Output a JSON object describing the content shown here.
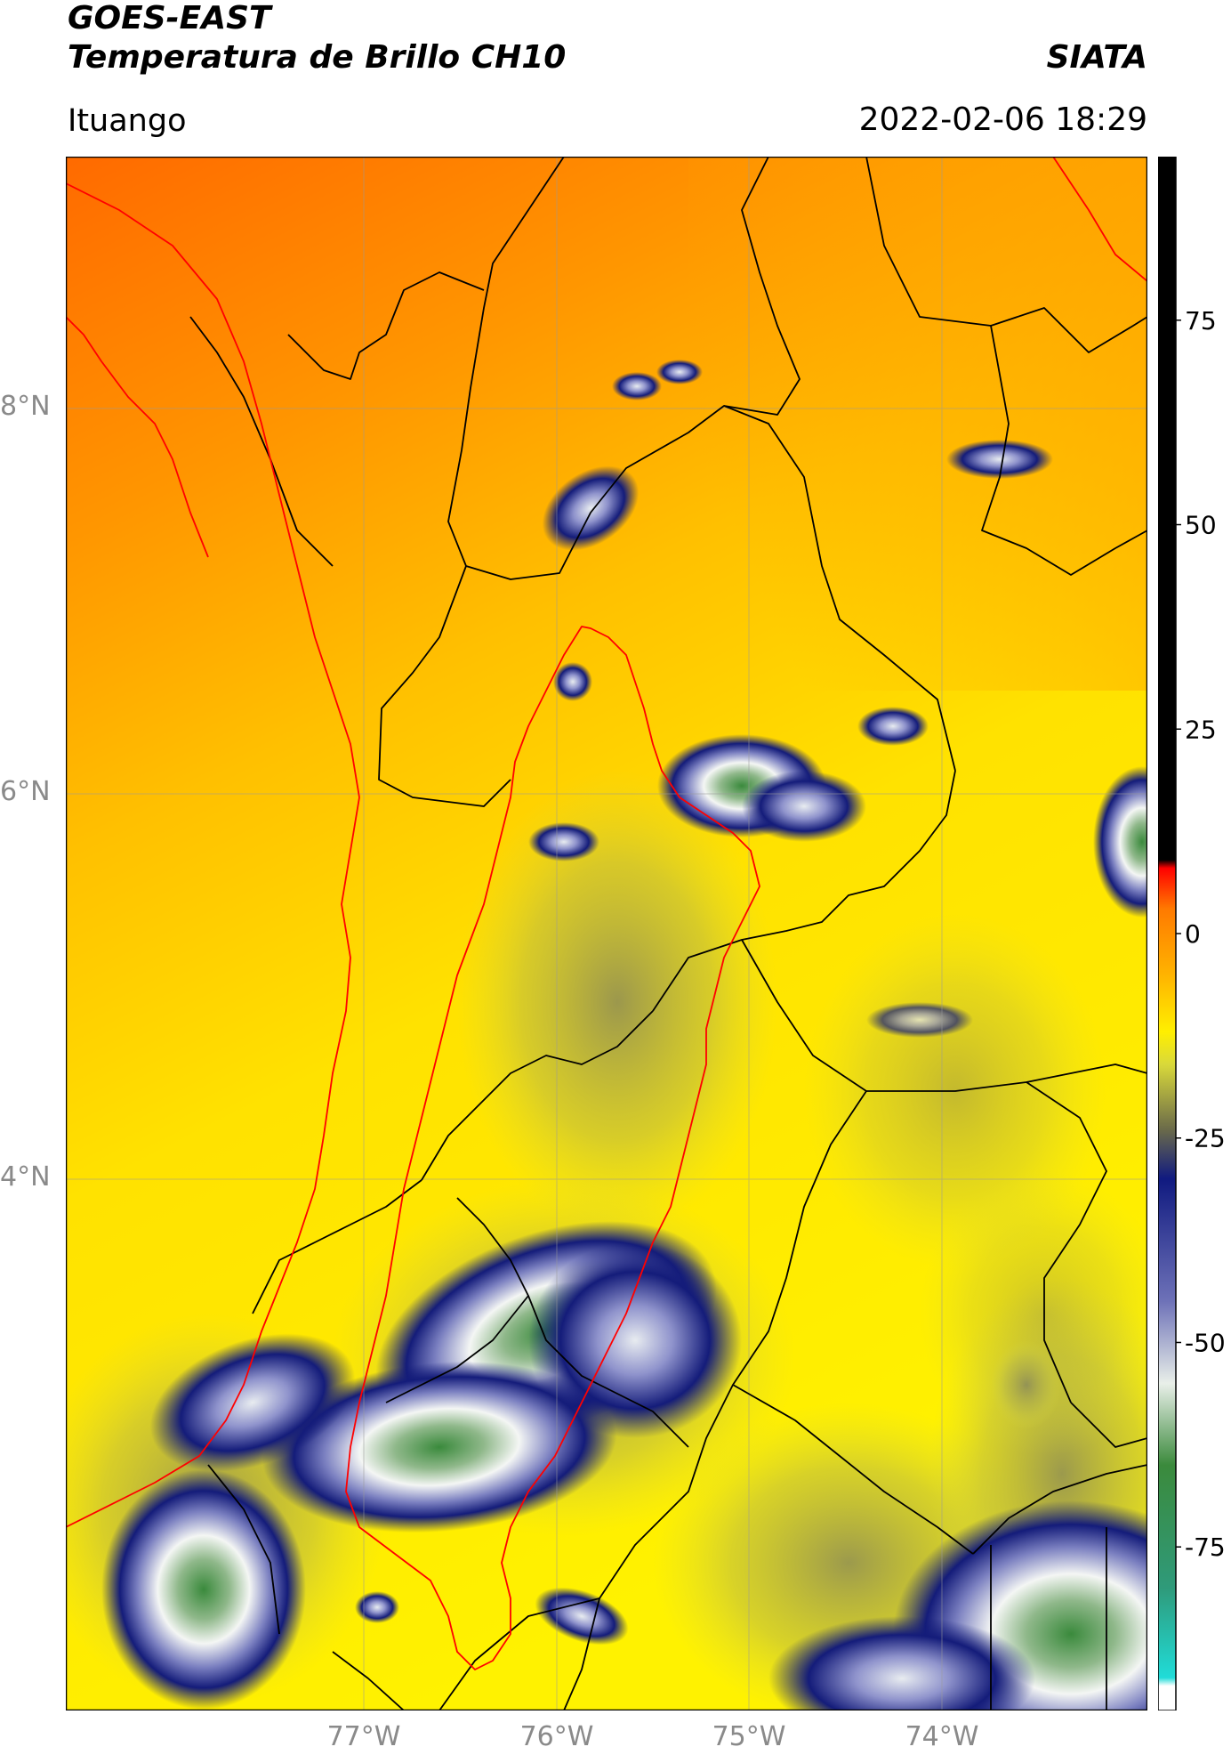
{
  "header": {
    "satellite": "GOES-EAST",
    "product": "Temperatura de Brillo CH10",
    "brand": "SIATA",
    "region": "Ituango",
    "datetime": "2022-02-06 18:29"
  },
  "map": {
    "lat_ticks": [
      "8°N",
      "6°N",
      "4°N"
    ],
    "lon_ticks": [
      "77°W",
      "76°W",
      "75°W",
      "74°W"
    ],
    "colors": {
      "warm": "#ff6a00",
      "mid": "#ffa800",
      "yellow": "#ffee00",
      "olive": "#b8b848",
      "navy": "#141c7a",
      "lavender": "#a4a8d8",
      "white": "#f4f6f4",
      "green": "#3a8a3c",
      "boundary": "#000000",
      "coast": "#ff0000",
      "grid": "#9a9a9a"
    }
  },
  "colorbar": {
    "ticks": [
      "75",
      "50",
      "25",
      "0",
      "-25",
      "-50",
      "-75"
    ],
    "colors": [
      "#ffffff",
      "#20dcd8",
      "#2f9a7a",
      "#3b8a3c",
      "#e9efe9",
      "#6e72b8",
      "#101a80",
      "#6a6a4a",
      "#d9d93a",
      "#ffef00",
      "#ffb300",
      "#ff7a00",
      "#ff0000",
      "#000000"
    ]
  }
}
